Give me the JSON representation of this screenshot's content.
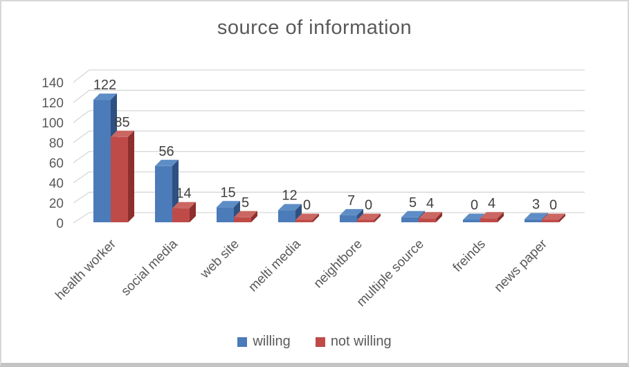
{
  "chart_data": {
    "type": "bar",
    "style": "3d-clustered-column",
    "title": "source of information",
    "categories": [
      "health worker",
      "social media",
      "web site",
      "melti media",
      "neightbore",
      "multiple source",
      "freinds",
      "news paper"
    ],
    "series": [
      {
        "name": "willing",
        "values": [
          122,
          56,
          15,
          12,
          7,
          5,
          0,
          3
        ],
        "color": "#4b7bb8",
        "color_top": "#5e8dc6",
        "color_side": "#2e5181"
      },
      {
        "name": "not willing",
        "values": [
          85,
          14,
          5,
          0,
          0,
          4,
          4,
          0
        ],
        "color": "#bf4b48",
        "color_top": "#cb6762",
        "color_side": "#8c2f2d"
      }
    ],
    "ylim": [
      0,
      140
    ],
    "yticks": [
      0,
      20,
      40,
      60,
      80,
      100,
      120,
      140
    ],
    "grid": true,
    "data_labels": true,
    "legend_position": "bottom",
    "xlabel": "",
    "ylabel": ""
  },
  "colors": {
    "title_text": "#595959",
    "axis_text": "#595959",
    "data_label_text": "#3f3f3f",
    "gridline": "#d6d6d6",
    "background": "#ffffff",
    "frame_border": "#d7d7d7"
  }
}
